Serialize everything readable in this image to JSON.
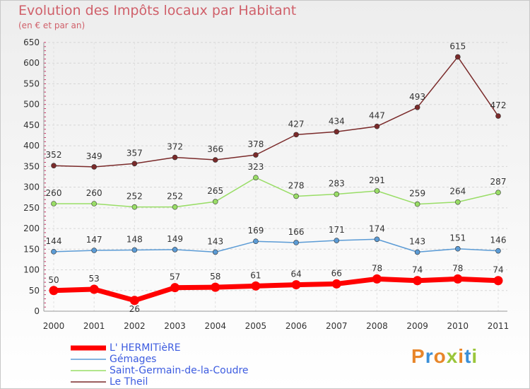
{
  "title": "Evolution des Impôts locaux par Habitant",
  "subtitle": "(en € et par an)",
  "logo": {
    "text": "Proxiti",
    "colors": [
      "#e8862a",
      "#3a8fd8",
      "#e8862a",
      "#9ac63b",
      "#e8862a",
      "#3a8fd8",
      "#9ac63b"
    ]
  },
  "chart_data": {
    "type": "line",
    "title": "Evolution des Impôts locaux par Habitant",
    "subtitle": "(en € et par an)",
    "xlabel": "",
    "ylabel": "",
    "x": [
      "2000",
      "2001",
      "2002",
      "2003",
      "2004",
      "2005",
      "2006",
      "2007",
      "2008",
      "2009",
      "2010",
      "2011"
    ],
    "ylim": [
      0,
      650
    ],
    "yticks": [
      0,
      50,
      100,
      150,
      200,
      250,
      300,
      350,
      400,
      450,
      500,
      550,
      600,
      650
    ],
    "grid": true,
    "legend_position": "bottom-left",
    "series": [
      {
        "name": "L' HERMITièRE",
        "color": "#ff0000",
        "values": [
          50,
          53,
          26,
          57,
          58,
          61,
          64,
          66,
          78,
          74,
          78,
          74
        ]
      },
      {
        "name": "Gémages",
        "color": "#5b9bd5",
        "values": [
          144,
          147,
          148,
          149,
          143,
          169,
          166,
          171,
          174,
          143,
          151,
          146
        ]
      },
      {
        "name": "Saint-Germain-de-la-Coudre",
        "color": "#99dd66",
        "values": [
          260,
          260,
          252,
          252,
          265,
          323,
          278,
          283,
          291,
          259,
          264,
          287
        ]
      },
      {
        "name": "Le Theil",
        "color": "#7a2a2a",
        "values": [
          352,
          349,
          357,
          372,
          366,
          378,
          427,
          434,
          447,
          493,
          615,
          472
        ]
      }
    ]
  }
}
